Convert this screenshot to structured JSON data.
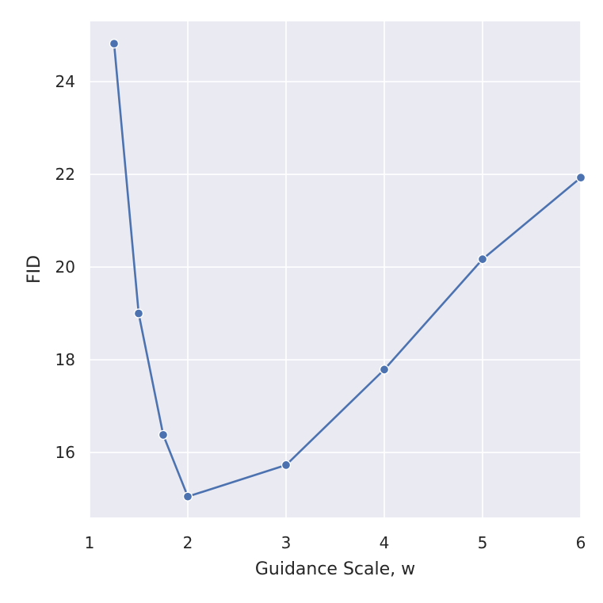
{
  "chart_data": {
    "type": "line",
    "xlabel": "Guidance Scale, w",
    "ylabel": "FID",
    "xlim": [
      1,
      6
    ],
    "ylim": [
      14.6,
      25.3
    ],
    "xticks": [
      1,
      2,
      3,
      4,
      5,
      6
    ],
    "yticks": [
      16,
      18,
      20,
      22,
      24
    ],
    "grid": true,
    "series": [
      {
        "x": [
          1.25,
          1.5,
          1.75,
          2,
          3,
          4,
          5,
          6
        ],
        "y": [
          24.82,
          19.0,
          16.38,
          15.05,
          15.73,
          17.79,
          20.17,
          21.93
        ]
      }
    ],
    "colors": {
      "line": "#4c72b0",
      "plot_background": "#eaeaf2",
      "grid": "#ffffff",
      "text": "#262626"
    }
  }
}
